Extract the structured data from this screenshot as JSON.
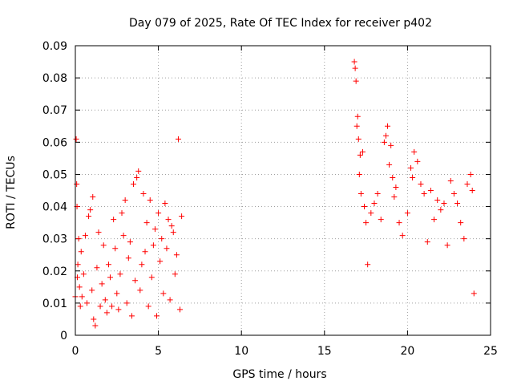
{
  "chart_data": {
    "type": "scatter",
    "title": "Day 079 of 2025, Rate Of TEC Index for receiver p402",
    "xlabel": "GPS time / hours",
    "ylabel": "ROTI / TECUs",
    "xlim": [
      0,
      25
    ],
    "ylim": [
      0,
      0.09
    ],
    "xticks": [
      0,
      5,
      10,
      15,
      20,
      25
    ],
    "xtick_labels": [
      "0",
      "5",
      "10",
      "15",
      "20",
      "25"
    ],
    "yticks": [
      0,
      0.01,
      0.02,
      0.03,
      0.04,
      0.05,
      0.06,
      0.07,
      0.08,
      0.09
    ],
    "ytick_labels": [
      "0",
      "0.01",
      "0.02",
      "0.03",
      "0.04",
      "0.05",
      "0.06",
      "0.07",
      "0.08",
      "0.09"
    ],
    "grid": true,
    "marker": "+",
    "color": "#ff0000",
    "series": [
      {
        "name": "ROTI",
        "points": [
          [
            0.0,
            0.012
          ],
          [
            0.05,
            0.061
          ],
          [
            0.08,
            0.047
          ],
          [
            0.1,
            0.04
          ],
          [
            0.12,
            0.018
          ],
          [
            0.15,
            0.022
          ],
          [
            0.2,
            0.03
          ],
          [
            0.25,
            0.015
          ],
          [
            0.3,
            0.009
          ],
          [
            0.35,
            0.026
          ],
          [
            0.4,
            0.012
          ],
          [
            0.5,
            0.019
          ],
          [
            0.6,
            0.031
          ],
          [
            0.7,
            0.01
          ],
          [
            0.8,
            0.037
          ],
          [
            0.9,
            0.039
          ],
          [
            1.0,
            0.014
          ],
          [
            1.05,
            0.043
          ],
          [
            1.1,
            0.005
          ],
          [
            1.2,
            0.003
          ],
          [
            1.3,
            0.021
          ],
          [
            1.4,
            0.032
          ],
          [
            1.5,
            0.009
          ],
          [
            1.6,
            0.016
          ],
          [
            1.7,
            0.028
          ],
          [
            1.8,
            0.011
          ],
          [
            1.9,
            0.007
          ],
          [
            2.0,
            0.022
          ],
          [
            2.1,
            0.018
          ],
          [
            2.2,
            0.009
          ],
          [
            2.3,
            0.036
          ],
          [
            2.4,
            0.027
          ],
          [
            2.5,
            0.013
          ],
          [
            2.6,
            0.008
          ],
          [
            2.7,
            0.019
          ],
          [
            2.8,
            0.038
          ],
          [
            2.9,
            0.031
          ],
          [
            3.0,
            0.042
          ],
          [
            3.1,
            0.01
          ],
          [
            3.2,
            0.024
          ],
          [
            3.3,
            0.029
          ],
          [
            3.4,
            0.006
          ],
          [
            3.5,
            0.047
          ],
          [
            3.6,
            0.017
          ],
          [
            3.7,
            0.049
          ],
          [
            3.8,
            0.051
          ],
          [
            3.9,
            0.014
          ],
          [
            4.0,
            0.022
          ],
          [
            4.1,
            0.044
          ],
          [
            4.2,
            0.026
          ],
          [
            4.3,
            0.035
          ],
          [
            4.4,
            0.009
          ],
          [
            4.5,
            0.042
          ],
          [
            4.6,
            0.018
          ],
          [
            4.7,
            0.028
          ],
          [
            4.8,
            0.033
          ],
          [
            4.9,
            0.006
          ],
          [
            5.0,
            0.038
          ],
          [
            5.1,
            0.023
          ],
          [
            5.2,
            0.03
          ],
          [
            5.3,
            0.013
          ],
          [
            5.4,
            0.041
          ],
          [
            5.5,
            0.027
          ],
          [
            5.6,
            0.036
          ],
          [
            5.7,
            0.011
          ],
          [
            5.8,
            0.034
          ],
          [
            5.9,
            0.032
          ],
          [
            6.0,
            0.019
          ],
          [
            6.1,
            0.025
          ],
          [
            6.2,
            0.061
          ],
          [
            6.3,
            0.008
          ],
          [
            6.4,
            0.037
          ],
          [
            16.8,
            0.085
          ],
          [
            16.85,
            0.083
          ],
          [
            16.9,
            0.079
          ],
          [
            16.95,
            0.065
          ],
          [
            17.0,
            0.068
          ],
          [
            17.05,
            0.061
          ],
          [
            17.1,
            0.05
          ],
          [
            17.15,
            0.056
          ],
          [
            17.2,
            0.044
          ],
          [
            17.3,
            0.057
          ],
          [
            17.4,
            0.04
          ],
          [
            17.5,
            0.035
          ],
          [
            17.6,
            0.022
          ],
          [
            17.8,
            0.038
          ],
          [
            18.0,
            0.041
          ],
          [
            18.2,
            0.044
          ],
          [
            18.4,
            0.036
          ],
          [
            18.6,
            0.06
          ],
          [
            18.7,
            0.062
          ],
          [
            18.8,
            0.065
          ],
          [
            18.9,
            0.053
          ],
          [
            19.0,
            0.059
          ],
          [
            19.1,
            0.049
          ],
          [
            19.2,
            0.043
          ],
          [
            19.3,
            0.046
          ],
          [
            19.5,
            0.035
          ],
          [
            19.7,
            0.031
          ],
          [
            20.0,
            0.038
          ],
          [
            20.2,
            0.052
          ],
          [
            20.3,
            0.049
          ],
          [
            20.4,
            0.057
          ],
          [
            20.6,
            0.054
          ],
          [
            20.8,
            0.047
          ],
          [
            21.0,
            0.044
          ],
          [
            21.2,
            0.029
          ],
          [
            21.4,
            0.045
          ],
          [
            21.6,
            0.036
          ],
          [
            21.8,
            0.042
          ],
          [
            22.0,
            0.039
          ],
          [
            22.2,
            0.041
          ],
          [
            22.4,
            0.028
          ],
          [
            22.6,
            0.048
          ],
          [
            22.8,
            0.044
          ],
          [
            23.0,
            0.041
          ],
          [
            23.2,
            0.035
          ],
          [
            23.4,
            0.03
          ],
          [
            23.6,
            0.047
          ],
          [
            23.8,
            0.05
          ],
          [
            23.9,
            0.045
          ],
          [
            24.0,
            0.013
          ]
        ]
      }
    ]
  }
}
